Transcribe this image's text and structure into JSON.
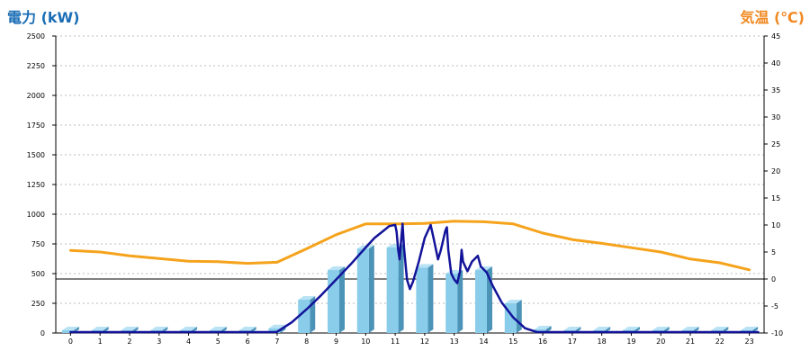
{
  "chart_data": {
    "type": "bar",
    "title": "",
    "y_left_label": "電力 (kW)",
    "y_right_label": "気温 (℃)",
    "x_ticks": [
      "0",
      "1",
      "2",
      "3",
      "4",
      "5",
      "6",
      "7",
      "8",
      "9",
      "10",
      "11",
      "12",
      "13",
      "14",
      "15",
      "16",
      "17",
      "18",
      "19",
      "20",
      "21",
      "22",
      "23"
    ],
    "y_left_ticks": [
      0,
      250,
      500,
      750,
      1000,
      1250,
      1500,
      1750,
      2000,
      2250,
      2500
    ],
    "y_right_ticks": [
      -10,
      -5,
      0,
      5,
      10,
      15,
      20,
      25,
      30,
      35,
      40,
      45
    ],
    "y_left_range": [
      0,
      2500
    ],
    "y_right_range": [
      -10,
      45
    ],
    "grid": true,
    "colors": {
      "bar_front": "#89cdea",
      "bar_side": "#4c93b8",
      "bar_top": "#b9e3f4",
      "power_line": "#13139a",
      "temp_line": "#f5a31c",
      "zero_line": "#000000",
      "grid": "#bbbbbb",
      "label_left": "#1a6db5",
      "label_right": "#f08a24"
    },
    "series": [
      {
        "kind": "bar",
        "axis": "left",
        "values": [
          0,
          0,
          0,
          0,
          0,
          0,
          0,
          40,
          280,
          530,
          710,
          720,
          550,
          500,
          530,
          250,
          30,
          0,
          0,
          0,
          0,
          0,
          0,
          0
        ]
      },
      {
        "kind": "line",
        "axis": "left",
        "points": [
          [
            0,
            0
          ],
          [
            6.9,
            0
          ],
          [
            7.0,
            10
          ],
          [
            7.5,
            90
          ],
          [
            8.0,
            200
          ],
          [
            8.5,
            320
          ],
          [
            9.0,
            450
          ],
          [
            9.5,
            580
          ],
          [
            10.0,
            720
          ],
          [
            10.3,
            800
          ],
          [
            10.6,
            860
          ],
          [
            10.8,
            900
          ],
          [
            11.0,
            910
          ],
          [
            11.05,
            850
          ],
          [
            11.1,
            700
          ],
          [
            11.15,
            620
          ],
          [
            11.2,
            780
          ],
          [
            11.25,
            920
          ],
          [
            11.3,
            720
          ],
          [
            11.4,
            450
          ],
          [
            11.5,
            370
          ],
          [
            11.6,
            430
          ],
          [
            11.8,
            600
          ],
          [
            12.0,
            800
          ],
          [
            12.2,
            910
          ],
          [
            12.3,
            800
          ],
          [
            12.45,
            620
          ],
          [
            12.55,
            700
          ],
          [
            12.7,
            860
          ],
          [
            12.75,
            890
          ],
          [
            12.8,
            700
          ],
          [
            12.9,
            500
          ],
          [
            13.0,
            450
          ],
          [
            13.1,
            420
          ],
          [
            13.2,
            520
          ],
          [
            13.25,
            700
          ],
          [
            13.3,
            600
          ],
          [
            13.45,
            520
          ],
          [
            13.6,
            600
          ],
          [
            13.8,
            650
          ],
          [
            13.9,
            560
          ],
          [
            14.1,
            510
          ],
          [
            14.3,
            400
          ],
          [
            14.6,
            260
          ],
          [
            15.0,
            130
          ],
          [
            15.4,
            40
          ],
          [
            15.8,
            0
          ],
          [
            23.3,
            0
          ]
        ]
      },
      {
        "kind": "line",
        "axis": "right",
        "points": [
          [
            0,
            5.3
          ],
          [
            1,
            5.0
          ],
          [
            2,
            4.3
          ],
          [
            3,
            3.8
          ],
          [
            4,
            3.3
          ],
          [
            5,
            3.2
          ],
          [
            6,
            2.9
          ],
          [
            7,
            3.1
          ],
          [
            8,
            5.6
          ],
          [
            9,
            8.2
          ],
          [
            10,
            10.2
          ],
          [
            11,
            10.2
          ],
          [
            12,
            10.3
          ],
          [
            13,
            10.7
          ],
          [
            14,
            10.6
          ],
          [
            15,
            10.2
          ],
          [
            16,
            8.5
          ],
          [
            17,
            7.3
          ],
          [
            18,
            6.6
          ],
          [
            19,
            5.8
          ],
          [
            20,
            5.0
          ],
          [
            21,
            3.7
          ],
          [
            22,
            3.0
          ],
          [
            23,
            1.7
          ]
        ]
      }
    ]
  }
}
